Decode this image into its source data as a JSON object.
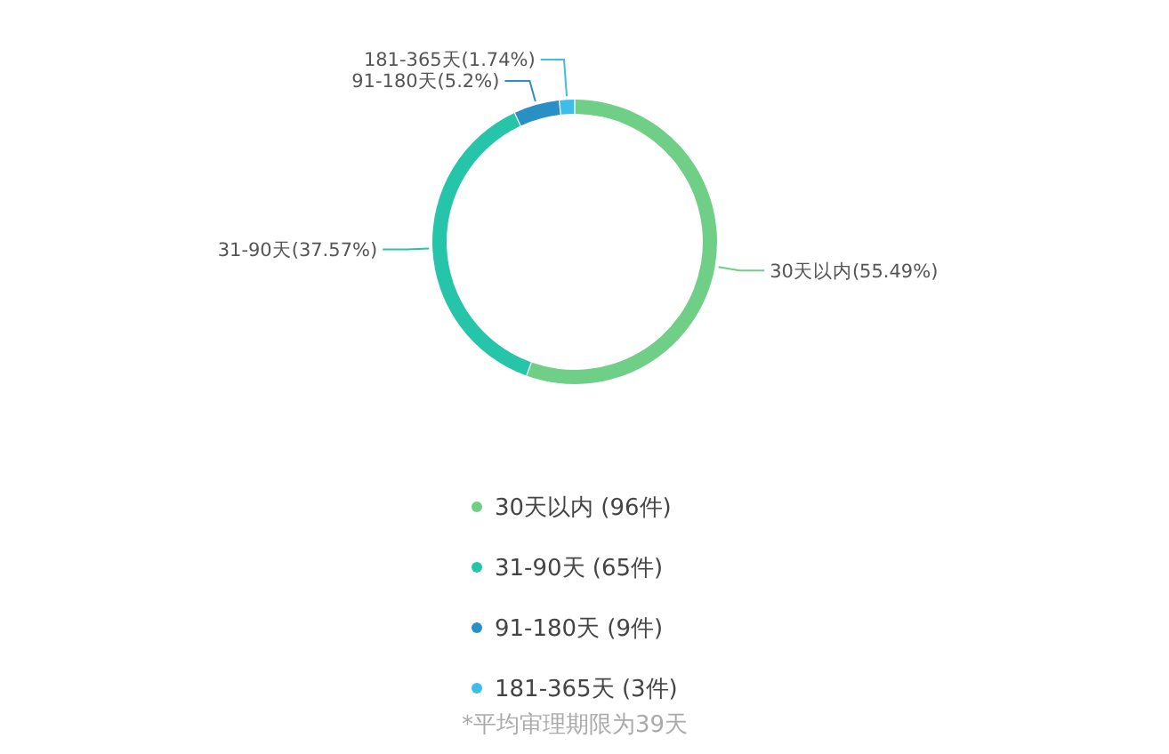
{
  "chart_data": {
    "type": "donut",
    "categories": [
      "30天以内  (96件)",
      "31-90天  (65件)",
      "91-180天  (9件)",
      "181-365天  (3件)"
    ],
    "values": [
      55.49,
      37.57,
      5.2,
      1.74
    ],
    "value_labels": [
      "30天以内(55.49%)",
      "31-90天(37.57%)",
      "91-180天(5.2%)",
      "181-365天(1.74%)"
    ],
    "colors": [
      "#6fcf87",
      "#26c4a8",
      "#2a8fc4",
      "#3dbde8"
    ],
    "legend": "bottom",
    "annotations": [
      "*平均审理期限为39天"
    ]
  }
}
